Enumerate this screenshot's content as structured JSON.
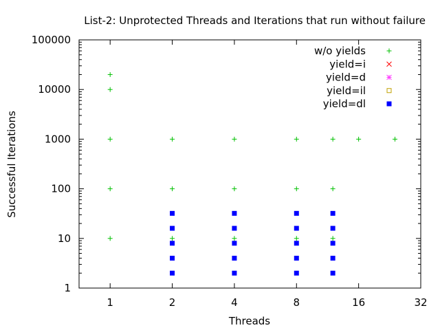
{
  "chart_data": {
    "type": "scatter",
    "title": "List-2: Unprotected Threads and Iterations that run without failure",
    "xlabel": "Threads",
    "ylabel": "Successful Iterations",
    "x_scale": "log2",
    "y_scale": "log10",
    "xlim": [
      0.707,
      32
    ],
    "ylim": [
      1,
      100000
    ],
    "x_ticks": [
      1,
      2,
      4,
      8,
      16,
      32
    ],
    "x_tick_labels": [
      "1",
      "2",
      "4",
      "8",
      "16",
      "32"
    ],
    "y_ticks": [
      1,
      10,
      100,
      1000,
      10000,
      100000
    ],
    "y_tick_labels": [
      "1",
      "10",
      "100",
      "1000",
      "10000",
      "100000"
    ],
    "grid": false,
    "legend_position": "top-right",
    "series": [
      {
        "name": "w/o yields",
        "marker": "plus",
        "color": "#00c000",
        "points": [
          [
            1,
            20000
          ],
          [
            1,
            10000
          ],
          [
            1,
            1000
          ],
          [
            1,
            100
          ],
          [
            1,
            10
          ],
          [
            2,
            1000
          ],
          [
            2,
            100
          ],
          [
            2,
            10
          ],
          [
            4,
            1000
          ],
          [
            4,
            100
          ],
          [
            4,
            10
          ],
          [
            8,
            1000
          ],
          [
            8,
            100
          ],
          [
            8,
            10
          ],
          [
            12,
            1000
          ],
          [
            12,
            100
          ],
          [
            12,
            10
          ],
          [
            16,
            1000
          ],
          [
            24,
            1000
          ]
        ]
      },
      {
        "name": "yield=i",
        "marker": "cross",
        "color": "#ff0000",
        "points": []
      },
      {
        "name": "yield=d",
        "marker": "star",
        "color": "#ff40ff",
        "points": []
      },
      {
        "name": "yield=il",
        "marker": "open-square",
        "color": "#c0a000",
        "points": []
      },
      {
        "name": "yield=dl",
        "marker": "filled-square",
        "color": "#0000ff",
        "points": [
          [
            2,
            32
          ],
          [
            2,
            16
          ],
          [
            2,
            8
          ],
          [
            2,
            4
          ],
          [
            2,
            2
          ],
          [
            4,
            32
          ],
          [
            4,
            16
          ],
          [
            4,
            8
          ],
          [
            4,
            4
          ],
          [
            4,
            2
          ],
          [
            8,
            32
          ],
          [
            8,
            16
          ],
          [
            8,
            8
          ],
          [
            8,
            4
          ],
          [
            8,
            2
          ],
          [
            12,
            32
          ],
          [
            12,
            16
          ],
          [
            12,
            8
          ],
          [
            12,
            4
          ],
          [
            12,
            2
          ]
        ]
      }
    ]
  }
}
